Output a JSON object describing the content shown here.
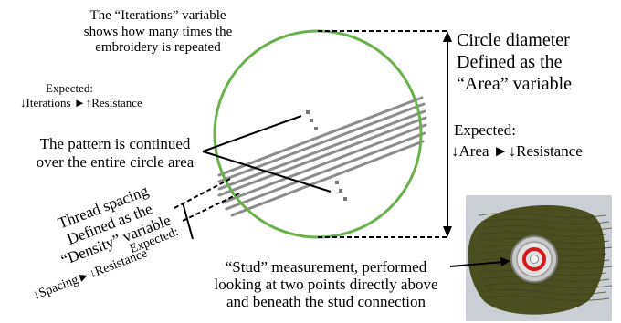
{
  "iterations": {
    "description": [
      "The “Iterations” variable",
      "shows how many times the",
      "embroidery is repeated"
    ],
    "expected_label": "Expected:",
    "expected_relation": "↓Iterations ►↑Resistance"
  },
  "diameter": {
    "description": [
      "Circle diameter",
      "Defined as the",
      "“Area” variable"
    ],
    "expected_label": "Expected:",
    "expected_relation": "↓Area ►↓Resistance"
  },
  "pattern_note": [
    "The pattern is continued",
    "over the entire circle area"
  ],
  "density": {
    "description": [
      "Thread spacing",
      "Defined as the",
      "“Density” variable"
    ],
    "expected_label": "Expected:",
    "expected_relation": "↓Spacing►↓Resistance"
  },
  "stud_note": [
    "“Stud” measurement, performed",
    "looking at two points directly above",
    "and beneath the stud connection"
  ],
  "colors": {
    "circle": "#6ab04c",
    "threads": "#8c8c8c",
    "fabric": "#4b4f1f",
    "photo_bg": "#c9cfd4",
    "stud_ring": "#d41a1a",
    "metal": "#c8c8c8"
  }
}
